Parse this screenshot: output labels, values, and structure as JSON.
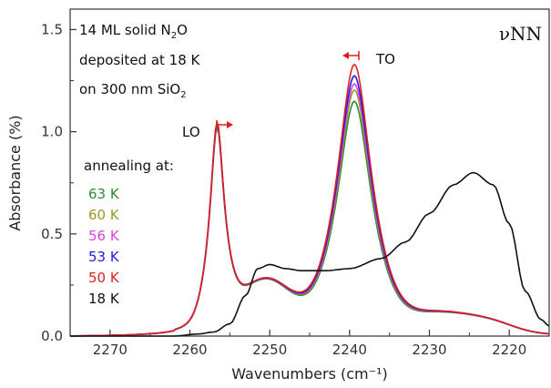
{
  "chart_data": {
    "type": "line",
    "xlabel": "Wavenumbers (cm⁻¹)",
    "ylabel": "Absorbance (%)",
    "xlim": [
      2275,
      2215
    ],
    "ylim": [
      0,
      1.6
    ],
    "x_ticks": [
      2270,
      2260,
      2250,
      2240,
      2230,
      2220
    ],
    "y_ticks": [
      0.0,
      0.5,
      1.0,
      1.5
    ],
    "x_tick_labels": [
      "2270",
      "2260",
      "2250",
      "2240",
      "2230",
      "2220"
    ],
    "y_tick_labels": [
      "0.0",
      "0.5",
      "1.0",
      "1.5"
    ],
    "corner_label": "νNN",
    "annotation": {
      "line1": "14 ML solid N",
      "line1_sub": "2",
      "line1_end": "O",
      "line2": "deposited at 18 K",
      "line3": "on 300 nm SiO",
      "line3_sub": "2"
    },
    "peak_labels": {
      "lo": "LO",
      "to": "TO"
    },
    "legend_title": "annealing at:",
    "series": [
      {
        "name": "63 K",
        "color": "#2e8b2e",
        "lo": 0.97,
        "to": 1.145
      },
      {
        "name": "60 K",
        "color": "#9a9a1e",
        "lo": 0.98,
        "to": 1.2
      },
      {
        "name": "56 K",
        "color": "#e040e0",
        "lo": 0.985,
        "to": 1.23
      },
      {
        "name": "53 K",
        "color": "#2020e0",
        "lo": 0.99,
        "to": 1.27
      },
      {
        "name": "50 K",
        "color": "#e02020",
        "lo": 0.995,
        "to": 1.325
      },
      {
        "name": "18 K",
        "color": "#111111",
        "points": [
          [
            2275,
            0.0
          ],
          [
            2262,
            0.0
          ],
          [
            2259,
            0.01
          ],
          [
            2257,
            0.02
          ],
          [
            2255,
            0.06
          ],
          [
            2253,
            0.2
          ],
          [
            2251.5,
            0.33
          ],
          [
            2250,
            0.35
          ],
          [
            2248,
            0.33
          ],
          [
            2246,
            0.32
          ],
          [
            2243,
            0.32
          ],
          [
            2240,
            0.33
          ],
          [
            2236,
            0.38
          ],
          [
            2233,
            0.46
          ],
          [
            2230,
            0.6
          ],
          [
            2227,
            0.74
          ],
          [
            2224.5,
            0.8
          ],
          [
            2222,
            0.74
          ],
          [
            2220,
            0.55
          ],
          [
            2218,
            0.22
          ],
          [
            2216,
            0.08
          ],
          [
            2215,
            0.05
          ]
        ]
      }
    ]
  }
}
